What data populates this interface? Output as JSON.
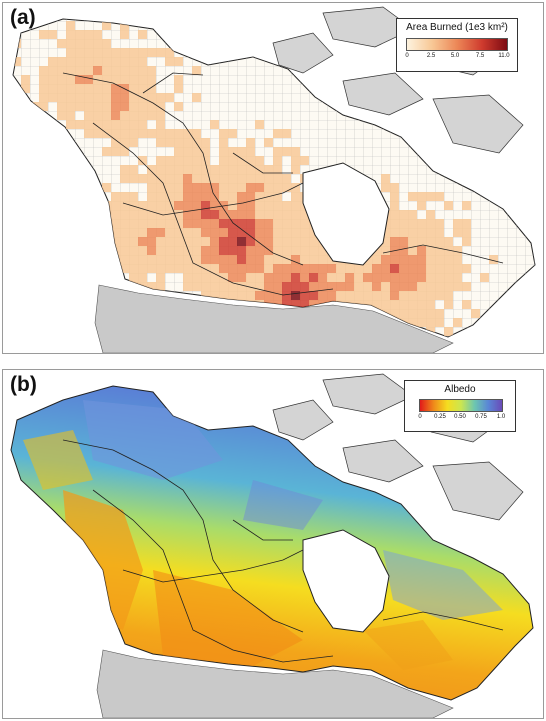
{
  "panel_a": {
    "label": "(a)",
    "legend": {
      "title": "Area Burned (1e3 km²)",
      "ticks": [
        "0",
        "2.5",
        "5.0",
        "7.5",
        "11.0"
      ],
      "colors": [
        "#fdf3df",
        "#f8c896",
        "#ec8757",
        "#cf3b2e",
        "#7d0b12"
      ]
    }
  },
  "panel_b": {
    "label": "(b)",
    "legend": {
      "title": "Albedo",
      "ticks": [
        "0",
        "0.25",
        "0.50",
        "0.75",
        "1.0"
      ],
      "colors": [
        "#e11a1a",
        "#ef8a1a",
        "#f5dd20",
        "#cbe650",
        "#6cc6b0",
        "#5a86d6",
        "#6a4bb8"
      ]
    }
  },
  "colors": {
    "ocean": "#ffffff",
    "land_usa": "#c9c9c9",
    "arctic_islands": "#d4d4d4",
    "boundary": "#222222"
  }
}
